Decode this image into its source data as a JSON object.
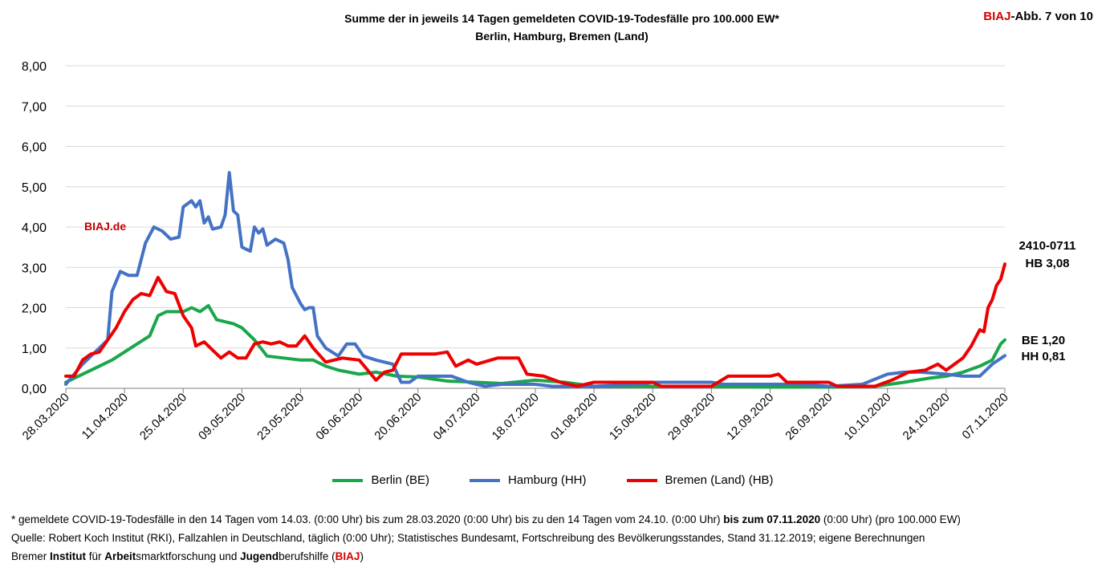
{
  "header": {
    "title_line1": "Summe der in jeweils 14 Tagen gemeldeten COVID-19-Todesfälle pro 100.000 EW*",
    "title_line2": "Berlin, Hamburg, Bremen (Land)",
    "badge_red": "BIAJ",
    "badge_rest": "-Abb. 7 von 10"
  },
  "watermark": "BIAJ.de",
  "annotations": {
    "code": "2410-0711",
    "hb": "HB 3,08",
    "be": "BE 1,20",
    "hh": "HH 0,81"
  },
  "legend": [
    {
      "label": "Berlin (BE)",
      "color": "#1aa64a"
    },
    {
      "label": "Hamburg (HH)",
      "color": "#4472c4"
    },
    {
      "label": "Bremen (Land) (HB)",
      "color": "#ee0000"
    }
  ],
  "footnotes": {
    "line1_a": "* gemeldete COVID-19-Todesfälle in den 14 Tagen vom 14.03. (0:00 Uhr) bis zum 28.03.2020 (0:00 Uhr) bis zu den 14 Tagen vom 24.10. (0:00 Uhr) ",
    "line1_b": "bis zum 07.11.2020",
    "line1_c": " (0:00 Uhr) (pro 100.000 EW)",
    "line2": "Quelle: Robert Koch Institut (RKI), Fallzahlen in Deutschland, täglich (0:00 Uhr); Statistisches Bundesamt, Fortschreibung des Bevölkerungsstandes, Stand 31.12.2019; eigene Berechnungen",
    "line3_1": "Bremer ",
    "line3_2": "Institut",
    "line3_3": " für ",
    "line3_4": "Arbeit",
    "line3_5": "smarktforschung und ",
    "line3_6": "Jugend",
    "line3_7": "berufshilfe (",
    "line3_8": "BIAJ",
    "line3_9": ")"
  },
  "chart_data": {
    "type": "line",
    "x_start": "28.03.2020",
    "x_end": "07.11.2020",
    "x_ticks": [
      "28.03.2020",
      "11.04.2020",
      "25.04.2020",
      "09.05.2020",
      "23.05.2020",
      "06.06.2020",
      "20.06.2020",
      "04.07.2020",
      "18.07.2020",
      "01.08.2020",
      "15.08.2020",
      "29.08.2020",
      "12.09.2020",
      "26.09.2020",
      "10.10.2020",
      "24.10.2020",
      "07.11.2020"
    ],
    "y_ticks": [
      "0,00",
      "1,00",
      "2,00",
      "3,00",
      "4,00",
      "5,00",
      "6,00",
      "7,00",
      "8,00"
    ],
    "ylim": [
      0,
      8
    ],
    "grid": true,
    "legend_position": "bottom",
    "series": [
      {
        "name": "Berlin (BE)",
        "color": "#1aa64a",
        "points": [
          [
            "28.03.2020",
            0.15
          ],
          [
            "31.03.2020",
            0.3
          ],
          [
            "04.04.2020",
            0.5
          ],
          [
            "08.04.2020",
            0.7
          ],
          [
            "11.04.2020",
            0.9
          ],
          [
            "14.04.2020",
            1.1
          ],
          [
            "17.04.2020",
            1.3
          ],
          [
            "19.04.2020",
            1.8
          ],
          [
            "21.04.2020",
            1.9
          ],
          [
            "23.04.2020",
            1.9
          ],
          [
            "25.04.2020",
            1.9
          ],
          [
            "27.04.2020",
            2.0
          ],
          [
            "29.04.2020",
            1.9
          ],
          [
            "01.05.2020",
            2.05
          ],
          [
            "03.05.2020",
            1.7
          ],
          [
            "07.05.2020",
            1.6
          ],
          [
            "09.05.2020",
            1.5
          ],
          [
            "12.05.2020",
            1.2
          ],
          [
            "15.05.2020",
            0.8
          ],
          [
            "19.05.2020",
            0.75
          ],
          [
            "23.05.2020",
            0.7
          ],
          [
            "26.05.2020",
            0.7
          ],
          [
            "29.05.2020",
            0.55
          ],
          [
            "01.06.2020",
            0.45
          ],
          [
            "06.06.2020",
            0.35
          ],
          [
            "10.06.2020",
            0.4
          ],
          [
            "15.06.2020",
            0.3
          ],
          [
            "20.06.2020",
            0.28
          ],
          [
            "27.06.2020",
            0.18
          ],
          [
            "04.07.2020",
            0.15
          ],
          [
            "10.07.2020",
            0.12
          ],
          [
            "18.07.2020",
            0.2
          ],
          [
            "25.07.2020",
            0.15
          ],
          [
            "01.08.2020",
            0.05
          ],
          [
            "15.08.2020",
            0.05
          ],
          [
            "29.08.2020",
            0.05
          ],
          [
            "12.09.2020",
            0.03
          ],
          [
            "26.09.2020",
            0.03
          ],
          [
            "07.10.2020",
            0.05
          ],
          [
            "14.10.2020",
            0.15
          ],
          [
            "20.10.2020",
            0.25
          ],
          [
            "24.10.2020",
            0.3
          ],
          [
            "28.10.2020",
            0.4
          ],
          [
            "01.11.2020",
            0.55
          ],
          [
            "04.11.2020",
            0.7
          ],
          [
            "06.11.2020",
            1.1
          ],
          [
            "07.11.2020",
            1.2
          ]
        ]
      },
      {
        "name": "Hamburg (HH)",
        "color": "#4472c4",
        "points": [
          [
            "28.03.2020",
            0.1
          ],
          [
            "01.04.2020",
            0.6
          ],
          [
            "05.04.2020",
            1.0
          ],
          [
            "07.04.2020",
            1.2
          ],
          [
            "08.04.2020",
            2.4
          ],
          [
            "10.04.2020",
            2.9
          ],
          [
            "12.04.2020",
            2.8
          ],
          [
            "14.04.2020",
            2.8
          ],
          [
            "16.04.2020",
            3.6
          ],
          [
            "18.04.2020",
            4.0
          ],
          [
            "20.04.2020",
            3.9
          ],
          [
            "22.04.2020",
            3.7
          ],
          [
            "24.04.2020",
            3.75
          ],
          [
            "25.04.2020",
            4.5
          ],
          [
            "27.04.2020",
            4.65
          ],
          [
            "28.04.2020",
            4.5
          ],
          [
            "29.04.2020",
            4.65
          ],
          [
            "30.04.2020",
            4.1
          ],
          [
            "01.05.2020",
            4.25
          ],
          [
            "02.05.2020",
            3.95
          ],
          [
            "04.05.2020",
            4.0
          ],
          [
            "05.05.2020",
            4.3
          ],
          [
            "06.05.2020",
            5.35
          ],
          [
            "07.05.2020",
            4.4
          ],
          [
            "08.05.2020",
            4.3
          ],
          [
            "09.05.2020",
            3.5
          ],
          [
            "11.05.2020",
            3.4
          ],
          [
            "12.05.2020",
            4.0
          ],
          [
            "13.05.2020",
            3.85
          ],
          [
            "14.05.2020",
            3.95
          ],
          [
            "15.05.2020",
            3.55
          ],
          [
            "17.05.2020",
            3.7
          ],
          [
            "19.05.2020",
            3.6
          ],
          [
            "20.05.2020",
            3.2
          ],
          [
            "21.05.2020",
            2.5
          ],
          [
            "23.05.2020",
            2.1
          ],
          [
            "24.05.2020",
            1.95
          ],
          [
            "25.05.2020",
            2.0
          ],
          [
            "26.05.2020",
            2.0
          ],
          [
            "27.05.2020",
            1.3
          ],
          [
            "29.05.2020",
            1.0
          ],
          [
            "01.06.2020",
            0.8
          ],
          [
            "03.06.2020",
            1.1
          ],
          [
            "05.06.2020",
            1.1
          ],
          [
            "07.06.2020",
            0.8
          ],
          [
            "10.06.2020",
            0.7
          ],
          [
            "14.06.2020",
            0.6
          ],
          [
            "16.06.2020",
            0.15
          ],
          [
            "18.06.2020",
            0.15
          ],
          [
            "20.06.2020",
            0.3
          ],
          [
            "24.06.2020",
            0.3
          ],
          [
            "28.06.2020",
            0.3
          ],
          [
            "02.07.2020",
            0.15
          ],
          [
            "06.07.2020",
            0.05
          ],
          [
            "10.07.2020",
            0.1
          ],
          [
            "18.07.2020",
            0.1
          ],
          [
            "22.07.2020",
            0.05
          ],
          [
            "01.08.2020",
            0.05
          ],
          [
            "12.08.2020",
            0.1
          ],
          [
            "15.08.2020",
            0.15
          ],
          [
            "29.08.2020",
            0.15
          ],
          [
            "01.09.2020",
            0.1
          ],
          [
            "12.09.2020",
            0.1
          ],
          [
            "18.09.2020",
            0.1
          ],
          [
            "26.09.2020",
            0.05
          ],
          [
            "04.10.2020",
            0.1
          ],
          [
            "10.10.2020",
            0.35
          ],
          [
            "14.10.2020",
            0.4
          ],
          [
            "18.10.2020",
            0.4
          ],
          [
            "24.10.2020",
            0.35
          ],
          [
            "28.10.2020",
            0.3
          ],
          [
            "01.11.2020",
            0.3
          ],
          [
            "04.11.2020",
            0.6
          ],
          [
            "07.11.2020",
            0.81
          ]
        ]
      },
      {
        "name": "Bremen (Land) (HB)",
        "color": "#ee0000",
        "points": [
          [
            "28.03.2020",
            0.3
          ],
          [
            "30.03.2020",
            0.3
          ],
          [
            "01.04.2020",
            0.7
          ],
          [
            "03.04.2020",
            0.85
          ],
          [
            "05.04.2020",
            0.9
          ],
          [
            "07.04.2020",
            1.2
          ],
          [
            "09.04.2020",
            1.5
          ],
          [
            "11.04.2020",
            1.9
          ],
          [
            "13.04.2020",
            2.2
          ],
          [
            "15.04.2020",
            2.35
          ],
          [
            "17.04.2020",
            2.3
          ],
          [
            "19.04.2020",
            2.75
          ],
          [
            "21.04.2020",
            2.4
          ],
          [
            "23.04.2020",
            2.35
          ],
          [
            "25.04.2020",
            1.8
          ],
          [
            "27.04.2020",
            1.5
          ],
          [
            "28.04.2020",
            1.05
          ],
          [
            "30.04.2020",
            1.15
          ],
          [
            "02.05.2020",
            0.95
          ],
          [
            "04.05.2020",
            0.75
          ],
          [
            "06.05.2020",
            0.9
          ],
          [
            "08.05.2020",
            0.75
          ],
          [
            "10.05.2020",
            0.75
          ],
          [
            "12.05.2020",
            1.1
          ],
          [
            "14.05.2020",
            1.15
          ],
          [
            "16.05.2020",
            1.1
          ],
          [
            "18.05.2020",
            1.15
          ],
          [
            "20.05.2020",
            1.05
          ],
          [
            "22.05.2020",
            1.05
          ],
          [
            "24.05.2020",
            1.3
          ],
          [
            "26.05.2020",
            1.0
          ],
          [
            "29.05.2020",
            0.65
          ],
          [
            "02.06.2020",
            0.75
          ],
          [
            "06.06.2020",
            0.7
          ],
          [
            "08.06.2020",
            0.45
          ],
          [
            "10.06.2020",
            0.2
          ],
          [
            "12.06.2020",
            0.4
          ],
          [
            "14.06.2020",
            0.45
          ],
          [
            "16.06.2020",
            0.85
          ],
          [
            "20.06.2020",
            0.85
          ],
          [
            "24.06.2020",
            0.85
          ],
          [
            "27.06.2020",
            0.9
          ],
          [
            "29.06.2020",
            0.55
          ],
          [
            "02.07.2020",
            0.7
          ],
          [
            "04.07.2020",
            0.6
          ],
          [
            "09.07.2020",
            0.75
          ],
          [
            "14.07.2020",
            0.75
          ],
          [
            "16.07.2020",
            0.35
          ],
          [
            "20.07.2020",
            0.3
          ],
          [
            "24.07.2020",
            0.15
          ],
          [
            "28.07.2020",
            0.05
          ],
          [
            "01.08.2020",
            0.15
          ],
          [
            "15.08.2020",
            0.15
          ],
          [
            "17.08.2020",
            0.05
          ],
          [
            "29.08.2020",
            0.05
          ],
          [
            "02.09.2020",
            0.3
          ],
          [
            "12.09.2020",
            0.3
          ],
          [
            "14.09.2020",
            0.35
          ],
          [
            "16.09.2020",
            0.15
          ],
          [
            "26.09.2020",
            0.15
          ],
          [
            "28.09.2020",
            0.05
          ],
          [
            "07.10.2020",
            0.05
          ],
          [
            "11.10.2020",
            0.2
          ],
          [
            "15.10.2020",
            0.4
          ],
          [
            "19.10.2020",
            0.45
          ],
          [
            "22.10.2020",
            0.6
          ],
          [
            "24.10.2020",
            0.45
          ],
          [
            "26.10.2020",
            0.6
          ],
          [
            "28.10.2020",
            0.75
          ],
          [
            "30.10.2020",
            1.05
          ],
          [
            "01.11.2020",
            1.45
          ],
          [
            "02.11.2020",
            1.4
          ],
          [
            "03.11.2020",
            2.0
          ],
          [
            "04.11.2020",
            2.2
          ],
          [
            "05.11.2020",
            2.55
          ],
          [
            "06.11.2020",
            2.7
          ],
          [
            "07.11.2020",
            3.08
          ]
        ]
      }
    ]
  }
}
